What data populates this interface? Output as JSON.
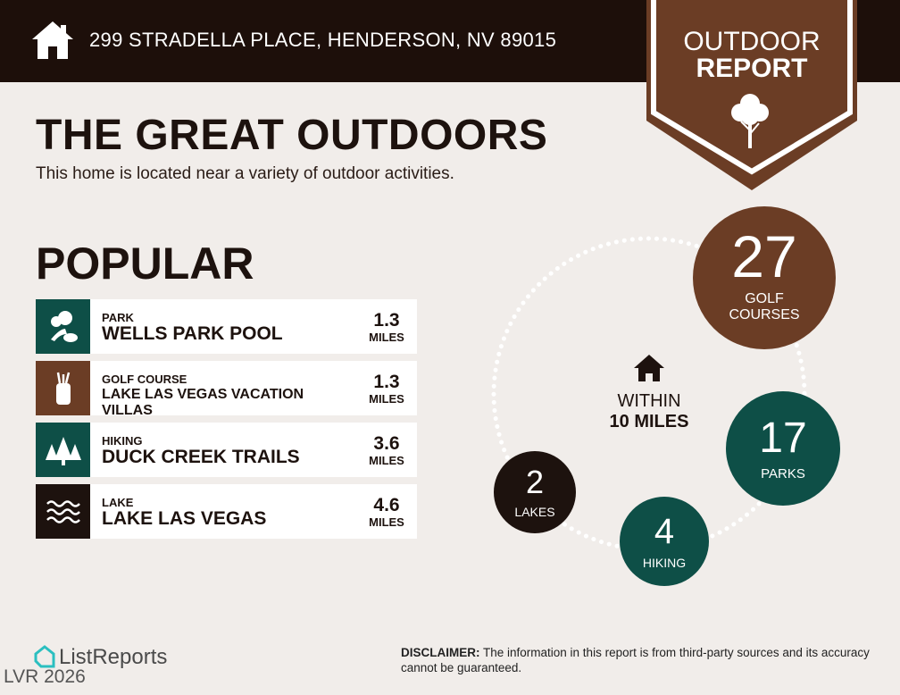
{
  "header": {
    "address": "299 STRADELLA PLACE, HENDERSON, NV 89015",
    "home_icon": "house-icon"
  },
  "badge": {
    "line1": "OUTDOOR",
    "line2": "REPORT",
    "icon": "tree-icon"
  },
  "colors": {
    "header": "#1d0f0a",
    "brown": "#6b3d25",
    "teal": "#0e4f47",
    "dark": "#1d120e",
    "background": "#f1edea"
  },
  "title": "THE GREAT OUTDOORS",
  "subtitle": "This home is located near a variety of outdoor activities.",
  "popular": {
    "heading": "POPULAR",
    "items": [
      {
        "category": "PARK",
        "name": "WELLS PARK POOL",
        "distance": "1.3",
        "unit": "MILES",
        "icon": "park-icon"
      },
      {
        "category": "GOLF COURSE",
        "name": "LAKE LAS VEGAS VACATION VILLAS",
        "distance": "1.3",
        "unit": "MILES",
        "icon": "golf-bag-icon"
      },
      {
        "category": "HIKING",
        "name": "DUCK CREEK TRAILS",
        "distance": "3.6",
        "unit": "MILES",
        "icon": "pine-trees-icon"
      },
      {
        "category": "LAKE",
        "name": "LAKE LAS VEGAS",
        "distance": "4.6",
        "unit": "MILES",
        "icon": "waves-icon"
      }
    ]
  },
  "radius": {
    "line1": "WITHIN",
    "line2": "10 MILES"
  },
  "counts": [
    {
      "value": "27",
      "label1": "GOLF",
      "label2": "COURSES"
    },
    {
      "value": "17",
      "label1": "PARKS",
      "label2": ""
    },
    {
      "value": "4",
      "label1": "HIKING",
      "label2": ""
    },
    {
      "value": "2",
      "label1": "LAKES",
      "label2": ""
    }
  ],
  "footer": {
    "brand": "ListReports",
    "watermark": "LVR 2026",
    "disclaimer_label": "DISCLAIMER:",
    "disclaimer_text": " The information in this report is from third-party sources and its accuracy cannot be guaranteed."
  }
}
